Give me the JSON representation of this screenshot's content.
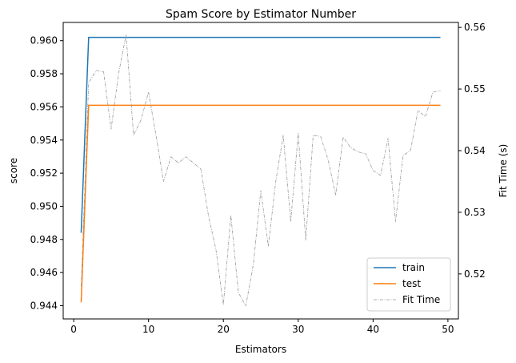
{
  "chart_data": {
    "type": "line",
    "title": "Spam Score by Estimator Number",
    "xlabel": "Estimators",
    "ylabel": "score",
    "y2label": "Fit Time (s)",
    "xlim": [
      -1.4,
      51.4
    ],
    "ylim": [
      0.9432,
      0.9611
    ],
    "y2lim": [
      0.5127,
      0.5608
    ],
    "x_ticks": [
      0,
      10,
      20,
      30,
      40,
      50
    ],
    "y_ticks": [
      0.944,
      0.946,
      0.948,
      0.95,
      0.952,
      0.954,
      0.956,
      0.958,
      0.96
    ],
    "y_tick_labels": [
      "0.944",
      "0.946",
      "0.948",
      "0.950",
      "0.952",
      "0.954",
      "0.956",
      "0.958",
      "0.960"
    ],
    "y2_ticks": [
      0.52,
      0.53,
      0.54,
      0.55,
      0.56
    ],
    "y2_tick_labels": [
      "0.52",
      "0.53",
      "0.54",
      "0.55",
      "0.56"
    ],
    "grid": false,
    "legend_position": "lower-right",
    "series": [
      {
        "name": "train",
        "axis": "left",
        "style": "solid",
        "color": "#1f77b4",
        "x": [
          1,
          2,
          49
        ],
        "y": [
          0.9484,
          0.9602,
          0.9602
        ]
      },
      {
        "name": "test",
        "axis": "left",
        "style": "solid",
        "color": "#ff7f0e",
        "x": [
          1,
          2,
          49
        ],
        "y": [
          0.9442,
          0.9561,
          0.9561
        ]
      },
      {
        "name": "Fit Time",
        "axis": "right",
        "style": "dashdot",
        "color": "#999999",
        "x": [
          1,
          2,
          3,
          4,
          5,
          6,
          7,
          8,
          9,
          10,
          11,
          12,
          13,
          14,
          15,
          16,
          17,
          18,
          19,
          20,
          21,
          22,
          23,
          24,
          25,
          26,
          27,
          28,
          29,
          30,
          31,
          32,
          33,
          34,
          35,
          36,
          37,
          38,
          39,
          40,
          41,
          42,
          43,
          44,
          45,
          46,
          47,
          48,
          49
        ],
        "y": [
          0.518,
          0.551,
          0.553,
          0.5528,
          0.5435,
          0.5525,
          0.5588,
          0.5425,
          0.545,
          0.5495,
          0.5425,
          0.535,
          0.539,
          0.538,
          0.539,
          0.538,
          0.537,
          0.5295,
          0.524,
          0.515,
          0.5295,
          0.517,
          0.5148,
          0.5215,
          0.5335,
          0.5245,
          0.535,
          0.5425,
          0.5285,
          0.5428,
          0.5255,
          0.5425,
          0.5423,
          0.5385,
          0.5328,
          0.5422,
          0.5405,
          0.5398,
          0.5395,
          0.5368,
          0.536,
          0.542,
          0.5285,
          0.5392,
          0.54,
          0.5465,
          0.5455,
          0.5495,
          0.5497
        ]
      }
    ]
  }
}
